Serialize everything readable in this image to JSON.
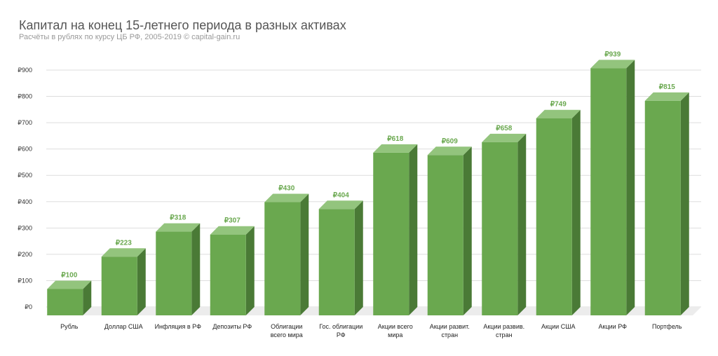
{
  "chart_data": {
    "type": "bar",
    "title": "Капитал на конец 15-летнего периода в разных активах",
    "subtitle": "Расчёты в рублях по курсу ЦБ РФ, 2005-2019 © capital-gain.ru",
    "xlabel": "",
    "ylabel": "",
    "categories": [
      [
        "Рубль"
      ],
      [
        "Доллар США"
      ],
      [
        "Инфляция в РФ"
      ],
      [
        "Депозиты РФ"
      ],
      [
        "Облигации",
        "всего мира"
      ],
      [
        "Гос. облигации",
        "РФ"
      ],
      [
        "Акции всего",
        "мира"
      ],
      [
        "Акции развит.",
        "стран"
      ],
      [
        "Акции развив.",
        "стран"
      ],
      [
        "Акции США"
      ],
      [
        "Акции РФ"
      ],
      [
        "Портфель"
      ]
    ],
    "values": [
      100,
      223,
      318,
      307,
      430,
      404,
      618,
      609,
      658,
      749,
      939,
      815
    ],
    "value_labels": [
      "₽100",
      "₽223",
      "₽318",
      "₽307",
      "₽430",
      "₽404",
      "₽618",
      "₽609",
      "₽658",
      "₽749",
      "₽939",
      "₽815"
    ],
    "y_ticks": [
      0,
      100,
      200,
      300,
      400,
      500,
      600,
      700,
      800,
      900
    ],
    "y_tick_labels": [
      "₽0",
      "₽100",
      "₽200",
      "₽300",
      "₽400",
      "₽500",
      "₽600",
      "₽700",
      "₽800",
      "₽900"
    ],
    "ylim": [
      0,
      900
    ],
    "grid": true,
    "legend": "none",
    "style": "3d-columns",
    "colors": {
      "bar_front": "#6aa84f",
      "bar_top": "#93c47d",
      "bar_side": "#4a7a36",
      "value_label": "#6aa84f",
      "grid": "#dddddd",
      "floor": "#ececec"
    }
  }
}
